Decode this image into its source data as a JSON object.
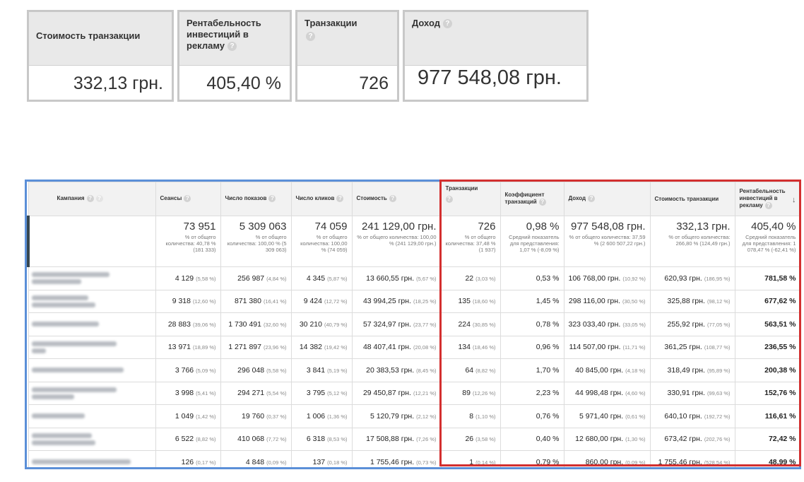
{
  "kpis": [
    {
      "label": "Стоимость транзакции",
      "value": "332,13 грн.",
      "help": false
    },
    {
      "label": "Рентабельность инвестиций в рекламу",
      "value": "405,40 %",
      "help": true
    },
    {
      "label": "Транзакции",
      "value": "726",
      "help": true
    },
    {
      "label": "Доход",
      "value": "977 548,08 грн.",
      "help": true
    }
  ],
  "help_icon": "question-circle-icon",
  "sort_icon": "arrow-down-icon",
  "table": {
    "headers": [
      "Кампания",
      "Сеансы",
      "Число показов",
      "Число кликов",
      "Стоимость",
      "Транзакции",
      "Коэффициент транзакций",
      "Доход",
      "Стоимость транзакции",
      "Рентабельность инвестиций в рекламу"
    ],
    "totals": [
      {
        "value": "73 951",
        "sub": "% от общего количества: 40,78 % (181 333)"
      },
      {
        "value": "5 309 063",
        "sub": "% от общего количества: 100,00 % (5 309 063)"
      },
      {
        "value": "74 059",
        "sub": "% от общего количества: 100,00 % (74 059)"
      },
      {
        "value": "241 129,00 грн.",
        "sub": "% от общего количества: 100,00 % (241 129,00 грн.)"
      },
      {
        "value": "726",
        "sub": "% от общего количества: 37,48 % (1 937)"
      },
      {
        "value": "0,98 %",
        "sub": "Средний показатель для представления: 1,07 % (-8,09 %)"
      },
      {
        "value": "977 548,08 грн.",
        "sub": "% от общего количества: 37,59 % (2 600 507,22 грн.)"
      },
      {
        "value": "332,13 грн.",
        "sub": "% от общего количества: 266,80 % (124,49 грн.)"
      },
      {
        "value": "405,40 %",
        "sub": "Средний показатель для представления: 1 078,47 % (-62,41 %)"
      }
    ],
    "rows": [
      {
        "c": [
          [
            "4 129",
            "(5,58 %)"
          ],
          [
            "256 987",
            "(4,84 %)"
          ],
          [
            "4 345",
            "(5,87 %)"
          ],
          [
            "13 660,55 грн.",
            "(5,67 %)"
          ],
          [
            "22",
            "(3,03 %)"
          ],
          [
            "0,53 %",
            ""
          ],
          [
            "106 768,00 грн.",
            "(10,92 %)"
          ],
          [
            "620,93 грн.",
            "(186,95 %)"
          ],
          [
            "781,58 %",
            ""
          ]
        ]
      },
      {
        "c": [
          [
            "9 318",
            "(12,60 %)"
          ],
          [
            "871 380",
            "(16,41 %)"
          ],
          [
            "9 424",
            "(12,72 %)"
          ],
          [
            "43 994,25 грн.",
            "(18,25 %)"
          ],
          [
            "135",
            "(18,60 %)"
          ],
          [
            "1,45 %",
            ""
          ],
          [
            "298 116,00 грн.",
            "(30,50 %)"
          ],
          [
            "325,88 грн.",
            "(98,12 %)"
          ],
          [
            "677,62 %",
            ""
          ]
        ]
      },
      {
        "c": [
          [
            "28 883",
            "(39,06 %)"
          ],
          [
            "1 730 491",
            "(32,60 %)"
          ],
          [
            "30 210",
            "(40,79 %)"
          ],
          [
            "57 324,97 грн.",
            "(23,77 %)"
          ],
          [
            "224",
            "(30,85 %)"
          ],
          [
            "0,78 %",
            ""
          ],
          [
            "323 033,40 грн.",
            "(33,05 %)"
          ],
          [
            "255,92 грн.",
            "(77,05 %)"
          ],
          [
            "563,51 %",
            ""
          ]
        ]
      },
      {
        "c": [
          [
            "13 971",
            "(18,89 %)"
          ],
          [
            "1 271 897",
            "(23,96 %)"
          ],
          [
            "14 382",
            "(19,42 %)"
          ],
          [
            "48 407,41 грн.",
            "(20,08 %)"
          ],
          [
            "134",
            "(18,46 %)"
          ],
          [
            "0,96 %",
            ""
          ],
          [
            "114 507,00 грн.",
            "(11,71 %)"
          ],
          [
            "361,25 грн.",
            "(108,77 %)"
          ],
          [
            "236,55 %",
            ""
          ]
        ]
      },
      {
        "c": [
          [
            "3 766",
            "(5,09 %)"
          ],
          [
            "296 048",
            "(5,58 %)"
          ],
          [
            "3 841",
            "(5,19 %)"
          ],
          [
            "20 383,53 грн.",
            "(8,45 %)"
          ],
          [
            "64",
            "(8,82 %)"
          ],
          [
            "1,70 %",
            ""
          ],
          [
            "40 845,00 грн.",
            "(4,18 %)"
          ],
          [
            "318,49 грн.",
            "(95,89 %)"
          ],
          [
            "200,38 %",
            ""
          ]
        ]
      },
      {
        "c": [
          [
            "3 998",
            "(5,41 %)"
          ],
          [
            "294 271",
            "(5,54 %)"
          ],
          [
            "3 795",
            "(5,12 %)"
          ],
          [
            "29 450,87 грн.",
            "(12,21 %)"
          ],
          [
            "89",
            "(12,26 %)"
          ],
          [
            "2,23 %",
            ""
          ],
          [
            "44 998,48 грн.",
            "(4,60 %)"
          ],
          [
            "330,91 грн.",
            "(99,63 %)"
          ],
          [
            "152,76 %",
            ""
          ]
        ]
      },
      {
        "c": [
          [
            "1 049",
            "(1,42 %)"
          ],
          [
            "19 760",
            "(0,37 %)"
          ],
          [
            "1 006",
            "(1,36 %)"
          ],
          [
            "5 120,79 грн.",
            "(2,12 %)"
          ],
          [
            "8",
            "(1,10 %)"
          ],
          [
            "0,76 %",
            ""
          ],
          [
            "5 971,40 грн.",
            "(0,61 %)"
          ],
          [
            "640,10 грн.",
            "(192,72 %)"
          ],
          [
            "116,61 %",
            ""
          ]
        ]
      },
      {
        "c": [
          [
            "6 522",
            "(8,82 %)"
          ],
          [
            "410 068",
            "(7,72 %)"
          ],
          [
            "6 318",
            "(8,53 %)"
          ],
          [
            "17 508,88 грн.",
            "(7,26 %)"
          ],
          [
            "26",
            "(3,58 %)"
          ],
          [
            "0,40 %",
            ""
          ],
          [
            "12 680,00 грн.",
            "(1,30 %)"
          ],
          [
            "673,42 грн.",
            "(202,76 %)"
          ],
          [
            "72,42 %",
            ""
          ]
        ]
      },
      {
        "c": [
          [
            "126",
            "(0,17 %)"
          ],
          [
            "4 848",
            "(0,09 %)"
          ],
          [
            "137",
            "(0,18 %)"
          ],
          [
            "1 755,46 грн.",
            "(0,73 %)"
          ],
          [
            "1",
            "(0,14 %)"
          ],
          [
            "0,79 %",
            ""
          ],
          [
            "860,00 грн.",
            "(0,09 %)"
          ],
          [
            "1 755,46 грн.",
            "(528,54 %)"
          ],
          [
            "48,99 %",
            ""
          ]
        ]
      }
    ]
  }
}
